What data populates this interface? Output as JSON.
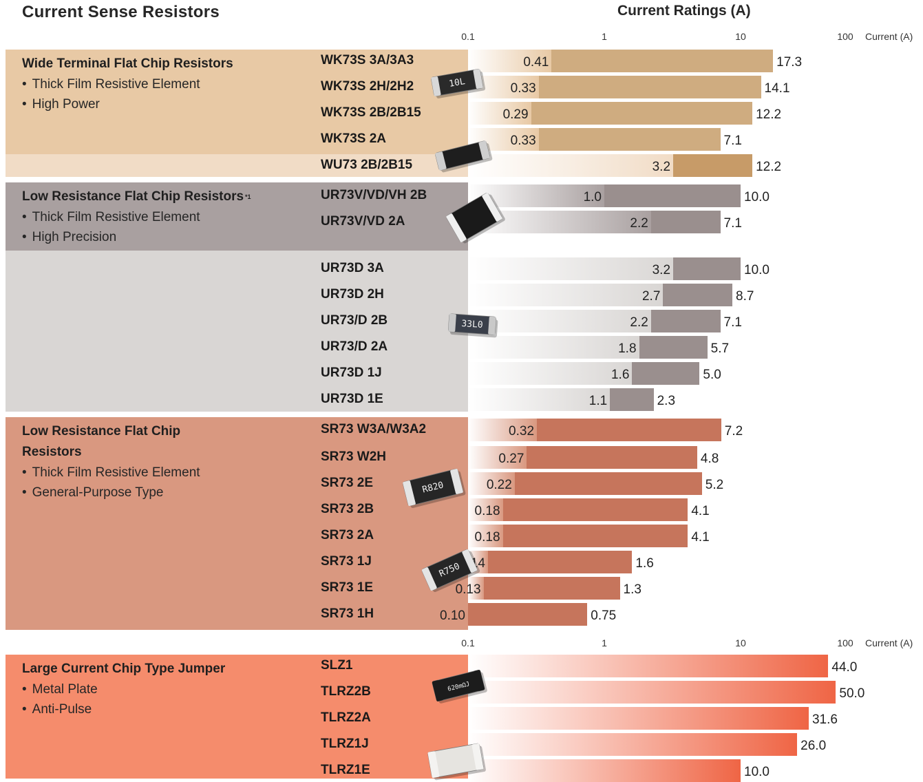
{
  "page_title": "Current Sense Resistors",
  "colors": {
    "wide_terminal_bg": "#e8c9a5",
    "wide_terminal_bar": "#cfac80",
    "wu73_bg": "#f1dcc6",
    "wu73_bar": "#c79b68",
    "low_res_precision_bg": "#a9a0a0",
    "low_res_precision_bar": "#9a8f8e",
    "ur73d_bg": "#d9d6d4",
    "low_res_general_bg": "#d99880",
    "low_res_general_bar": "#c6755c",
    "jumper_bg": "#f58c6c",
    "jumper_bar": "#ef6545"
  },
  "chart_data": {
    "type": "bar",
    "title": "Current Ratings (A)",
    "xlabel": "Current (A)",
    "x_scale": "log",
    "xlim": [
      0.1,
      100
    ],
    "x_ticks": [
      "0.1",
      "1",
      "10",
      "100"
    ],
    "grid": false,
    "groups": [
      {
        "id": "wide-terminal",
        "title": "Wide Terminal Flat Chip Resistors",
        "bullets": [
          "Thick Film Resistive Element",
          "High Power"
        ],
        "rows": [
          {
            "name": "WK73S 3A/3A3",
            "min": 0.41,
            "max": 17.3,
            "min_label": "0.41",
            "max_label": "17.3"
          },
          {
            "name": "WK73S 2H/2H2",
            "min": 0.33,
            "max": 14.1,
            "min_label": "0.33",
            "max_label": "14.1"
          },
          {
            "name": "WK73S 2B/2B15",
            "min": 0.29,
            "max": 12.2,
            "min_label": "0.29",
            "max_label": "12.2"
          },
          {
            "name": "WK73S 2A",
            "min": 0.33,
            "max": 7.1,
            "min_label": "0.33",
            "max_label": "7.1"
          },
          {
            "name": "WU73 2B/2B15",
            "min": 3.2,
            "max": 12.2,
            "min_label": "3.2",
            "max_label": "12.2"
          }
        ]
      },
      {
        "id": "low-res-precision",
        "title": "Low Resistance Flat Chip Resistors",
        "title_note": "*1",
        "bullets": [
          "Thick Film Resistive Element",
          "High Precision"
        ],
        "rows": [
          {
            "name": "UR73V/VD/VH 2B",
            "min": 1.0,
            "max": 10.0,
            "min_label": "1.0",
            "max_label": "10.0"
          },
          {
            "name": "UR73V/VD 2A",
            "min": 2.2,
            "max": 7.1,
            "min_label": "2.2",
            "max_label": "7.1"
          },
          {
            "name": "UR73D 3A",
            "min": 3.2,
            "max": 10.0,
            "min_label": "3.2",
            "max_label": "10.0"
          },
          {
            "name": "UR73D 2H",
            "min": 2.7,
            "max": 8.7,
            "min_label": "2.7",
            "max_label": "8.7"
          },
          {
            "name": "UR73/D 2B",
            "min": 2.2,
            "max": 7.1,
            "min_label": "2.2",
            "max_label": "7.1"
          },
          {
            "name": "UR73/D 2A",
            "min": 1.8,
            "max": 5.7,
            "min_label": "1.8",
            "max_label": "5.7"
          },
          {
            "name": "UR73D 1J",
            "min": 1.6,
            "max": 5.0,
            "min_label": "1.6",
            "max_label": "5.0"
          },
          {
            "name": "UR73D 1E",
            "min": 1.1,
            "max": 2.3,
            "min_label": "1.1",
            "max_label": "2.3"
          }
        ]
      },
      {
        "id": "low-res-general",
        "title": "Low Resistance Flat Chip Resistors",
        "bullets": [
          "Thick Film Resistive Element",
          "General-Purpose Type"
        ],
        "rows": [
          {
            "name": "SR73 W3A/W3A2",
            "min": 0.32,
            "max": 7.2,
            "min_label": "0.32",
            "max_label": "7.2"
          },
          {
            "name": "SR73 W2H",
            "min": 0.27,
            "max": 4.8,
            "min_label": "0.27",
            "max_label": "4.8"
          },
          {
            "name": "SR73 2E",
            "min": 0.22,
            "max": 5.2,
            "min_label": "0.22",
            "max_label": "5.2"
          },
          {
            "name": "SR73 2B",
            "min": 0.18,
            "max": 4.1,
            "min_label": "0.18",
            "max_label": "4.1"
          },
          {
            "name": "SR73 2A",
            "min": 0.18,
            "max": 4.1,
            "min_label": "0.18",
            "max_label": "4.1"
          },
          {
            "name": "SR73 1J",
            "min": 0.14,
            "max": 1.6,
            "min_label": "0.14",
            "max_label": "1.6"
          },
          {
            "name": "SR73 1E",
            "min": 0.13,
            "max": 1.3,
            "min_label": "0.13",
            "max_label": "1.3"
          },
          {
            "name": "SR73 1H",
            "min": 0.1,
            "max": 0.75,
            "min_label": "0.10",
            "max_label": "0.75"
          }
        ]
      },
      {
        "id": "jumper",
        "title": "Large Current Chip Type Jumper",
        "bullets": [
          "Metal Plate",
          "Anti-Pulse"
        ],
        "rows": [
          {
            "name": "SLZ1",
            "max": 44.0,
            "max_label": "44.0"
          },
          {
            "name": "TLRZ2B",
            "max": 50.0,
            "max_label": "50.0"
          },
          {
            "name": "TLRZ2A",
            "max": 31.6,
            "max_label": "31.6"
          },
          {
            "name": "TLRZ1J",
            "max": 26.0,
            "max_label": "26.0"
          },
          {
            "name": "TLRZ1E",
            "max": 10.0,
            "max_label": "10.0"
          }
        ]
      }
    ]
  },
  "chip_markings": [
    "10L",
    "33L0",
    "R820",
    "R750",
    "620mΩJ"
  ]
}
